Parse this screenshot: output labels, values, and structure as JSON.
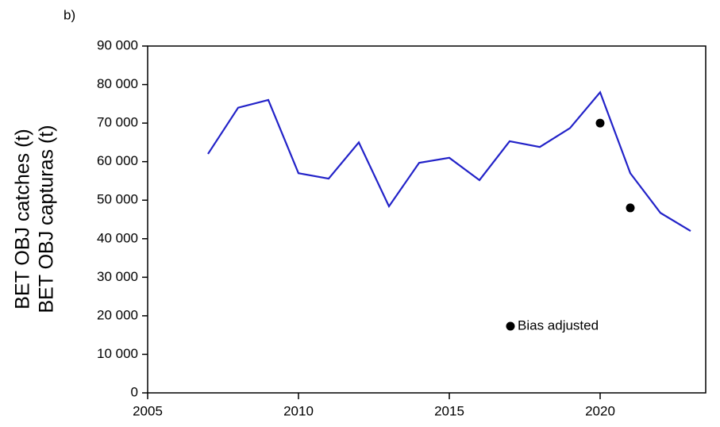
{
  "chart_data": {
    "type": "line",
    "panel_label": "b)",
    "y_label_lines": [
      "BET OBJ catches (t)",
      "BET OBJ capturas (t)"
    ],
    "xlim": [
      2005,
      2023.5
    ],
    "xticks": [
      2005,
      2010,
      2015,
      2020
    ],
    "ylim": [
      0,
      90000
    ],
    "yticks": [
      0,
      {
        "value": 10000,
        "label": "10 000"
      },
      {
        "value": 20000,
        "label": "20 000"
      },
      {
        "value": 30000,
        "label": "30 000"
      },
      {
        "value": 40000,
        "label": "40 000"
      },
      {
        "value": 50000,
        "label": "50 000"
      },
      {
        "value": 60000,
        "label": "60 000"
      },
      {
        "value": 70000,
        "label": "70 000"
      },
      {
        "value": 80000,
        "label": "80 000"
      },
      {
        "value": 90000,
        "label": "90 000"
      }
    ],
    "series": [
      {
        "type": "line",
        "color": "#2222c8",
        "x": [
          2007,
          2008,
          2009,
          2010,
          2011,
          2012,
          2013,
          2014,
          2015,
          2016,
          2017,
          2018,
          2019,
          2020,
          2021,
          2022,
          2023
        ],
        "values": [
          62000,
          74000,
          76000,
          57000,
          55600,
          65000,
          48400,
          59700,
          61000,
          55200,
          65300,
          63800,
          68700,
          78000,
          57000,
          46700,
          42000
        ]
      },
      {
        "type": "scatter",
        "name": "Bias adjusted",
        "color": "#000000",
        "x": [
          2020,
          2021
        ],
        "values": [
          70000,
          48000
        ]
      }
    ]
  }
}
